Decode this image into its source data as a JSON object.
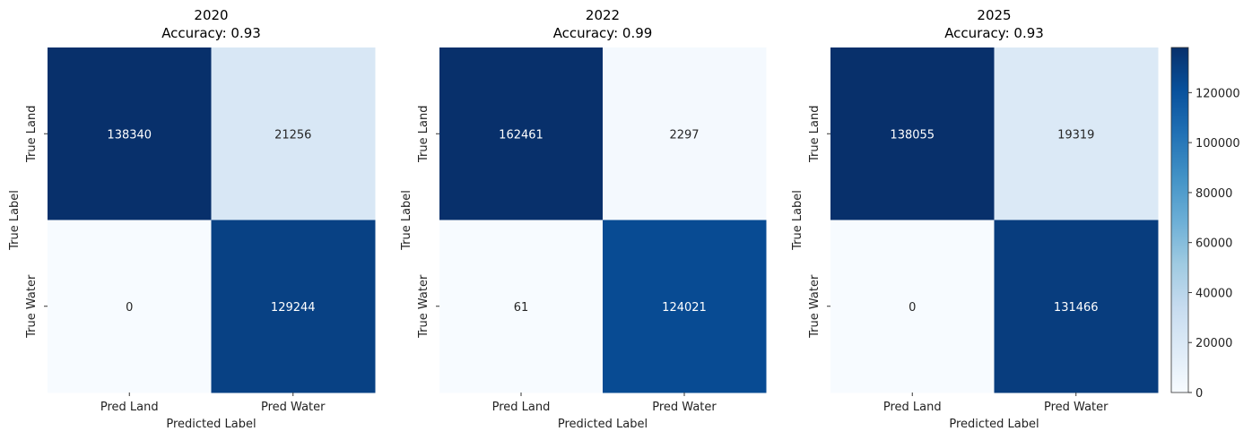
{
  "chart_data": [
    {
      "type": "heatmap",
      "title": "2020\nAccuracy: 0.93",
      "title_lines": [
        "2020",
        "Accuracy: 0.93"
      ],
      "xlabel": "Predicted Label",
      "ylabel": "True Label",
      "x_categories": [
        "Pred Land",
        "Pred Water"
      ],
      "y_categories": [
        "True Land",
        "True Water"
      ],
      "values": [
        [
          138340,
          21256
        ],
        [
          0,
          129244
        ]
      ]
    },
    {
      "type": "heatmap",
      "title": "2022\nAccuracy: 0.99",
      "title_lines": [
        "2022",
        "Accuracy: 0.99"
      ],
      "xlabel": "Predicted Label",
      "ylabel": "True Label",
      "x_categories": [
        "Pred Land",
        "Pred Water"
      ],
      "y_categories": [
        "True Land",
        "True Water"
      ],
      "values": [
        [
          162461,
          2297
        ],
        [
          61,
          124021
        ]
      ]
    },
    {
      "type": "heatmap",
      "title": "2025\nAccuracy: 0.93",
      "title_lines": [
        "2025",
        "Accuracy: 0.93"
      ],
      "xlabel": "Predicted Label",
      "ylabel": "True Label",
      "x_categories": [
        "Pred Land",
        "Pred Water"
      ],
      "y_categories": [
        "True Land",
        "True Water"
      ],
      "values": [
        [
          138055,
          19319
        ],
        [
          0,
          131466
        ]
      ]
    }
  ],
  "colorbar": {
    "colormap": "Blues",
    "min": 0,
    "max": 138055,
    "ticks": [
      0,
      20000,
      40000,
      60000,
      80000,
      100000,
      120000
    ]
  }
}
